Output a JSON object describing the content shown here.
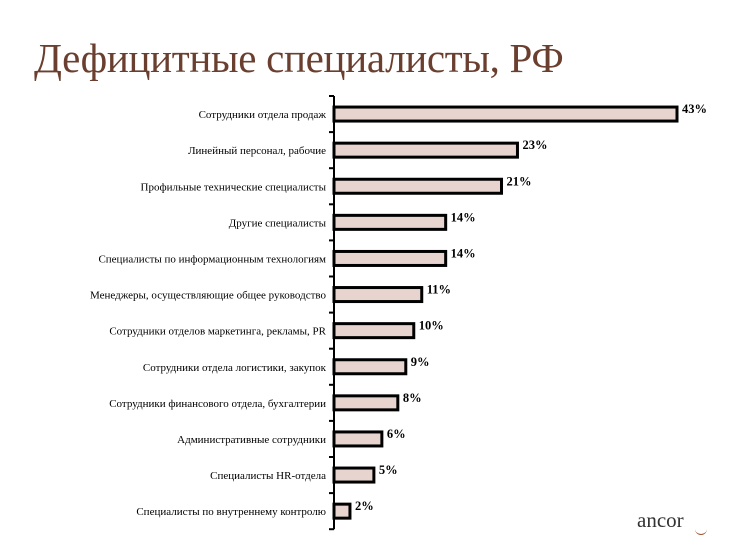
{
  "chart_data": {
    "type": "bar",
    "orientation": "horizontal",
    "title": "Дефицитные специалисты, РФ",
    "xlabel": "",
    "ylabel": "",
    "xlim": [
      0,
      43
    ],
    "grid": false,
    "categories": [
      "Сотрудники  отдела  продаж",
      "Линейный  персонал,  рабочие",
      "Профильные  технические  специалисты",
      "Другие  специалисты",
      "Специалисты  по  информационным  технологиям",
      "Менеджеры,  осуществляющие  общее  руководство",
      "Сотрудники  отделов  маркетинга,  рекламы,  PR",
      "Сотрудники  отдела  логистики,  закупок",
      "Сотрудники  финансового  отдела,  бухгалтерии",
      "Административные  сотрудники",
      "Специалисты  HR-отдела",
      "Специалисты  по  внутреннему  контролю"
    ],
    "values": [
      43,
      23,
      21,
      14,
      14,
      11,
      10,
      9,
      8,
      6,
      5,
      2
    ],
    "data_labels": [
      "43%",
      "23%",
      "21%",
      "14%",
      "14%",
      "11%",
      "10%",
      "9%",
      "8%",
      "6%",
      "5%",
      "2%"
    ],
    "colors": {
      "bar_fill": "#e8d4ce",
      "bar_stroke": "#000000",
      "title": "#6b3f2f"
    }
  },
  "logo": "ancor"
}
